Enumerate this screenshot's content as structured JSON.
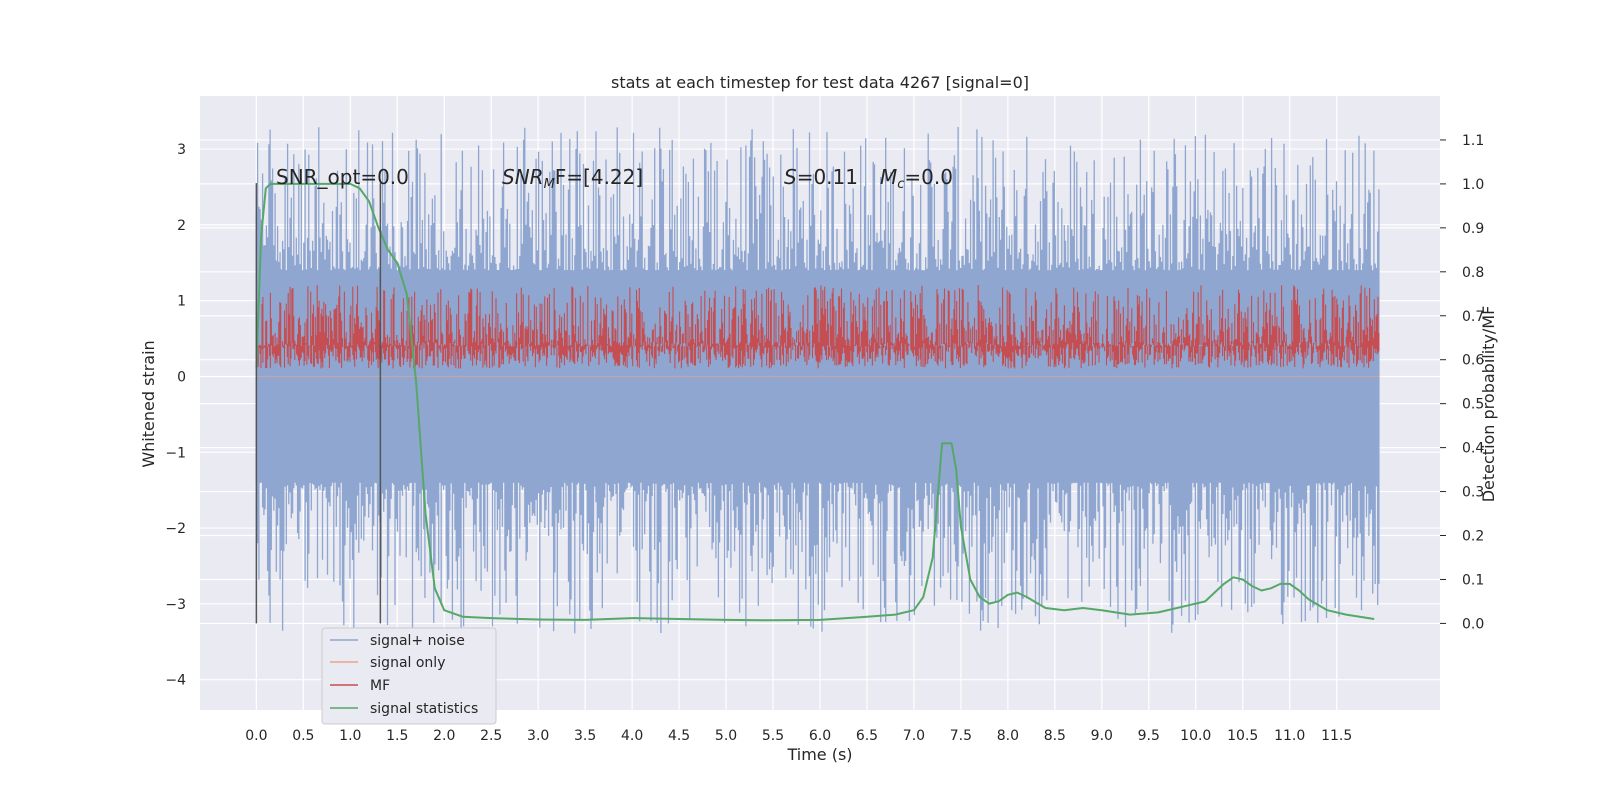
{
  "chart_data": {
    "type": "line",
    "title": "stats at each timestep for test data 4267 [signal=0]",
    "xlabel": "Time (s)",
    "ylabel": "Whitened strain",
    "y2label": "Detection probability/MF",
    "xlim": [
      -0.6,
      12.6
    ],
    "ylim": [
      -4.4,
      3.7
    ],
    "y2lim": [
      -0.197,
      1.2
    ],
    "x_ticks": [
      "0.0",
      "0.5",
      "1.0",
      "1.5",
      "2.0",
      "2.5",
      "3.0",
      "3.5",
      "4.0",
      "4.5",
      "5.0",
      "5.5",
      "6.0",
      "6.5",
      "7.0",
      "7.5",
      "8.0",
      "8.5",
      "9.0",
      "9.5",
      "10.0",
      "10.5",
      "11.0",
      "11.5"
    ],
    "y_ticks": [
      "3",
      "2",
      "1",
      "0",
      "−1",
      "−2",
      "−3",
      "−4"
    ],
    "y2_ticks": [
      "1.1",
      "1.0",
      "0.9",
      "0.8",
      "0.7",
      "0.6",
      "0.5",
      "0.4",
      "0.3",
      "0.2",
      "0.1",
      "0.0"
    ],
    "grid": true,
    "legend_position": "lower-left",
    "annotations": {
      "snr_opt": "SNR_opt=0.0",
      "snr_mf_name": "SNR",
      "snr_mf_sub": "M",
      "snr_mf_rest": "F=[4.22]",
      "s_name": "S",
      "s_value": "=0.11",
      "mc_name": "M",
      "mc_sub": "c",
      "mc_value": "=0.0"
    },
    "vlines": [
      0.0,
      1.32
    ],
    "series": [
      {
        "name": "signal+ noise",
        "color": "#8fa6d0",
        "axis": "left",
        "style": "noise band",
        "x_range": [
          0.0,
          11.95
        ],
        "core_range": [
          -1.4,
          1.4
        ],
        "peak_range": [
          -3.4,
          3.3
        ]
      },
      {
        "name": "signal only",
        "color": "#e8a58a",
        "axis": "left",
        "style": "flat",
        "values_description": "≈0"
      },
      {
        "name": "MF",
        "color": "#c44e52",
        "axis": "right",
        "style": "noise band",
        "x_range": [
          0.0,
          11.95
        ],
        "range": [
          0.58,
          0.77
        ]
      },
      {
        "name": "signal statistics",
        "color": "#55a868",
        "axis": "right",
        "x": [
          0.0,
          0.05,
          0.1,
          0.15,
          0.2,
          0.3,
          0.5,
          0.8,
          1.0,
          1.1,
          1.2,
          1.3,
          1.4,
          1.5,
          1.6,
          1.65,
          1.7,
          1.75,
          1.8,
          1.9,
          2.0,
          2.2,
          2.5,
          3.0,
          3.5,
          4.0,
          4.5,
          5.0,
          5.5,
          6.0,
          6.5,
          6.8,
          7.0,
          7.1,
          7.2,
          7.25,
          7.3,
          7.35,
          7.4,
          7.45,
          7.5,
          7.6,
          7.7,
          7.8,
          7.9,
          8.0,
          8.1,
          8.2,
          8.4,
          8.6,
          8.8,
          9.0,
          9.3,
          9.6,
          9.9,
          10.1,
          10.2,
          10.3,
          10.4,
          10.5,
          10.6,
          10.7,
          10.8,
          10.9,
          11.0,
          11.1,
          11.2,
          11.4,
          11.6,
          11.9
        ],
        "values": [
          0.58,
          0.88,
          0.99,
          1.0,
          1.0,
          1.0,
          1.0,
          1.0,
          1.0,
          0.99,
          0.96,
          0.9,
          0.85,
          0.82,
          0.75,
          0.65,
          0.55,
          0.4,
          0.25,
          0.08,
          0.03,
          0.015,
          0.012,
          0.009,
          0.008,
          0.012,
          0.01,
          0.008,
          0.007,
          0.008,
          0.015,
          0.02,
          0.03,
          0.06,
          0.15,
          0.28,
          0.41,
          0.41,
          0.41,
          0.35,
          0.22,
          0.1,
          0.06,
          0.045,
          0.05,
          0.065,
          0.07,
          0.06,
          0.035,
          0.03,
          0.035,
          0.03,
          0.02,
          0.025,
          0.04,
          0.05,
          0.07,
          0.09,
          0.105,
          0.1,
          0.085,
          0.075,
          0.08,
          0.09,
          0.09,
          0.075,
          0.055,
          0.03,
          0.02,
          0.01
        ]
      }
    ]
  }
}
